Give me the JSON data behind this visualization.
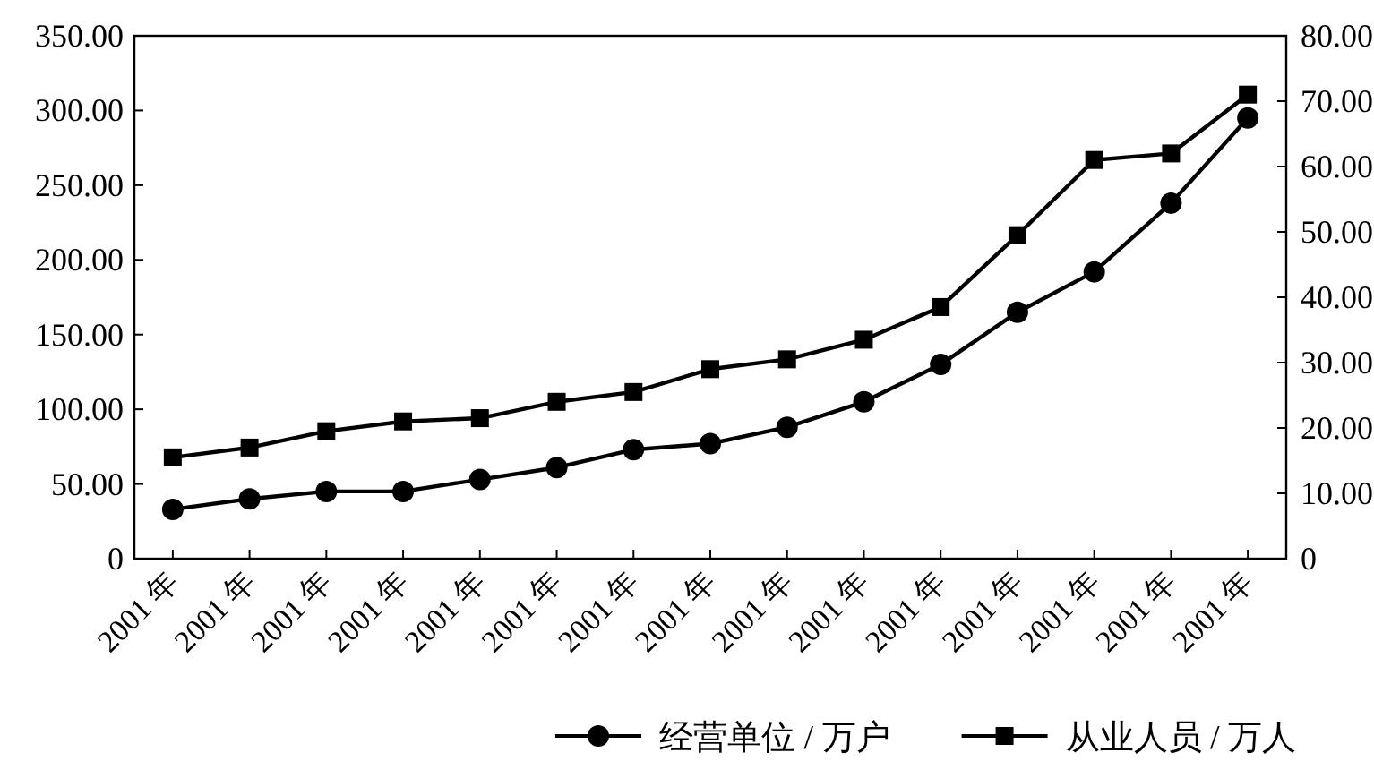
{
  "chart_data": {
    "type": "line",
    "categories": [
      "2001 年",
      "2001 年",
      "2001 年",
      "2001 年",
      "2001 年",
      "2001 年",
      "2001 年",
      "2001 年",
      "2001 年",
      "2001 年",
      "2001 年",
      "2001 年",
      "2001 年",
      "2001 年",
      "2001 年"
    ],
    "series": [
      {
        "name": "经营单位 / 万户",
        "color": "#000000",
        "marker": "circle",
        "values": [
          33,
          40,
          45,
          45,
          53,
          61,
          73,
          77,
          88,
          105,
          130,
          165,
          192,
          238,
          295
        ]
      },
      {
        "name": "从业人员 / 万人",
        "color": "#000000",
        "marker": "square",
        "axis": "y2",
        "values": [
          15.5,
          17,
          19.5,
          21,
          21.5,
          24,
          25.5,
          29,
          30.5,
          33.5,
          38.5,
          49.5,
          61,
          62,
          71
        ]
      }
    ],
    "ylim": [
      0,
      350
    ],
    "yticks": [
      {
        "value": 0,
        "label": "0"
      },
      {
        "value": 50,
        "label": "50.00"
      },
      {
        "value": 100,
        "label": "100.00"
      },
      {
        "value": 150,
        "label": "150.00"
      },
      {
        "value": 200,
        "label": "200.00"
      },
      {
        "value": 250,
        "label": "250.00"
      },
      {
        "value": 300,
        "label": "300.00"
      },
      {
        "value": 350,
        "label": "350.00"
      }
    ],
    "y2lim": [
      0,
      80
    ],
    "y2ticks": [
      {
        "value": 0,
        "label": "0"
      },
      {
        "value": 10,
        "label": "10.00"
      },
      {
        "value": 20,
        "label": "20.00"
      },
      {
        "value": 30,
        "label": "30.00"
      },
      {
        "value": 40,
        "label": "40.00"
      },
      {
        "value": 50,
        "label": "50.00"
      },
      {
        "value": 60,
        "label": "60.00"
      },
      {
        "value": 70,
        "label": "70.00"
      },
      {
        "value": 80,
        "label": "80.00"
      }
    ],
    "grid": false,
    "legend": "bottom right",
    "line_style": "solid"
  }
}
